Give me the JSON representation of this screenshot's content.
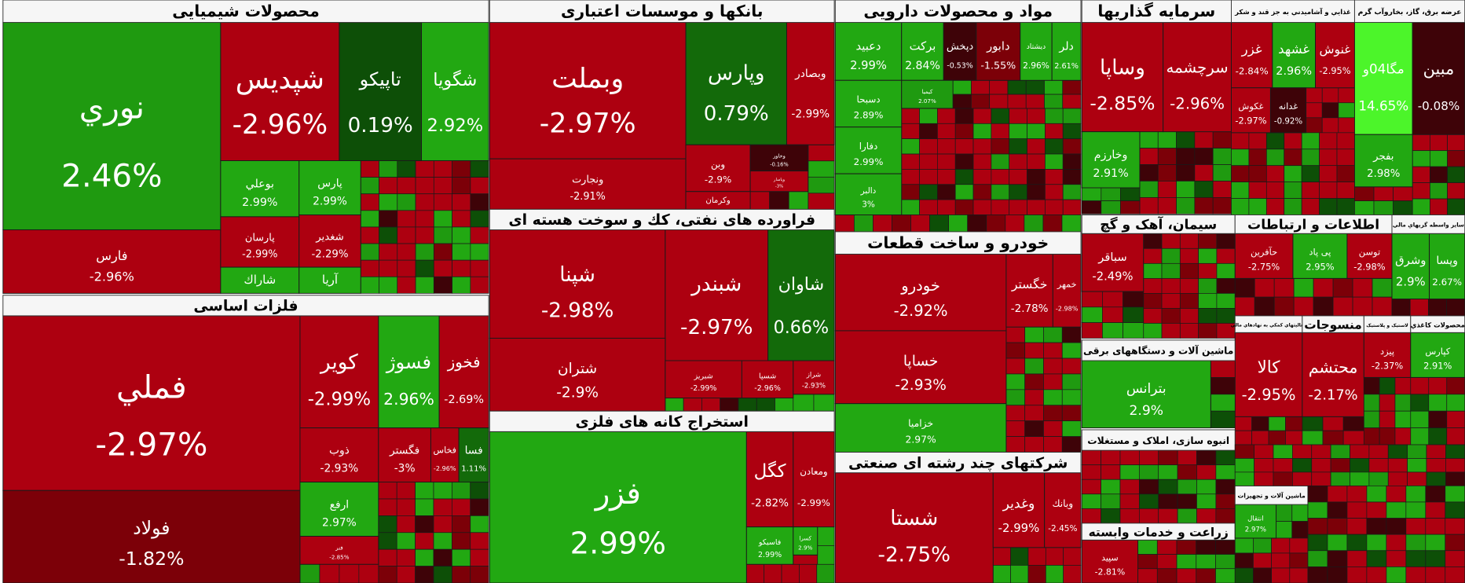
{
  "sectors": [
    {
      "title": "محصولات شیمیایی",
      "tiles": [
        {
          "name": "نوري",
          "change": "2.46%"
        },
        {
          "name": "فارس",
          "change": "-2.96%"
        },
        {
          "name": "شپديس",
          "change": "-2.96%"
        },
        {
          "name": "تاپيكو",
          "change": "0.19%"
        },
        {
          "name": "شگويا",
          "change": "2.92%"
        },
        {
          "name": "بوعلي",
          "change": "2.99%"
        },
        {
          "name": "پارس",
          "change": "2.99%"
        },
        {
          "name": "پارسان",
          "change": "-2.99%"
        },
        {
          "name": "شغدير",
          "change": "-2.29%"
        },
        {
          "name": "شاراك",
          "color": "#22a812"
        },
        {
          "name": "آريا",
          "color": "#22a812"
        }
      ]
    },
    {
      "title": "فلزات اساسی",
      "tiles": [
        {
          "name": "فملي",
          "change": "-2.97%"
        },
        {
          "name": "فولاد",
          "change": "-1.82%"
        },
        {
          "name": "كوير",
          "change": "-2.99%"
        },
        {
          "name": "فسوژ",
          "change": "2.96%"
        },
        {
          "name": "فخوز",
          "change": "-2.69%"
        },
        {
          "name": "ذوب",
          "change": "-2.93%"
        },
        {
          "name": "فگستر",
          "change": "-3%"
        },
        {
          "name": "فخاس",
          "change": "-2.96%"
        },
        {
          "name": "فسا",
          "change": "1.11%"
        },
        {
          "name": "ارفع",
          "change": "2.97%"
        },
        {
          "name": "فنر",
          "change": "-2.85%"
        }
      ]
    },
    {
      "title": "بانکها و موسسات اعتباری",
      "tiles": [
        {
          "name": "وبملت",
          "change": "-2.97%"
        },
        {
          "name": "وپارس",
          "change": "0.79%"
        },
        {
          "name": "وبصادر",
          "change": "-2.99%"
        },
        {
          "name": "ونجارت",
          "change": "-2.91%"
        },
        {
          "name": "وبن",
          "change": "-2.9%"
        },
        {
          "name": "وخاور",
          "change": "-0.16%"
        },
        {
          "name": "وپاسار",
          "change": "-3%"
        },
        {
          "name": "وکرمان",
          "color": "#ad0010"
        }
      ]
    },
    {
      "title": "فراورده های نفتی، کك و سوخت هسته ای",
      "tiles": [
        {
          "name": "شپنا",
          "change": "-2.98%"
        },
        {
          "name": "شبندر",
          "change": "-2.97%"
        },
        {
          "name": "شاوان",
          "change": "0.66%"
        },
        {
          "name": "شتران",
          "change": "-2.9%"
        },
        {
          "name": "شبريز",
          "change": "-2.99%"
        },
        {
          "name": "شسپا",
          "change": "-2.96%"
        },
        {
          "name": "شراز",
          "change": "-2.93%"
        }
      ]
    },
    {
      "title": "استخراج کانه های فلزی",
      "tiles": [
        {
          "name": "فزر",
          "change": "2.99%"
        },
        {
          "name": "كگل",
          "change": "-2.82%"
        },
        {
          "name": "ومعادن",
          "change": "-2.99%"
        },
        {
          "name": "فاسيكو",
          "change": "2.99%"
        },
        {
          "name": "كسرا",
          "change": "2.9%"
        }
      ]
    },
    {
      "title": "مواد و محصولات دارویی",
      "tiles": [
        {
          "name": "دعبيد",
          "change": "2.99%"
        },
        {
          "name": "بركت",
          "change": "2.84%"
        },
        {
          "name": "دپخش",
          "change": "-0.53%"
        },
        {
          "name": "دابور",
          "change": "-1.55%"
        },
        {
          "name": "ديشتاد",
          "change": "2.96%"
        },
        {
          "name": "دلر",
          "change": "2.61%"
        },
        {
          "name": "دسبحا",
          "change": "2.89%"
        },
        {
          "name": "دفارا",
          "change": "2.99%"
        },
        {
          "name": "دالبر",
          "change": "3%"
        },
        {
          "name": "کیمیا",
          "change": "2.07%"
        }
      ]
    },
    {
      "title": "خودرو و ساخت قطعات",
      "tiles": [
        {
          "name": "خودرو",
          "change": "-2.92%"
        },
        {
          "name": "خساپا",
          "change": "-2.93%"
        },
        {
          "name": "خزامیا",
          "change": "2.97%"
        },
        {
          "name": "خگستر",
          "change": "-2.78%"
        },
        {
          "name": "خمهر",
          "change": "-2.98%"
        }
      ]
    },
    {
      "title": "شرکتهای چند رشته ای صنعتی",
      "tiles": [
        {
          "name": "شستا",
          "change": "-2.75%"
        },
        {
          "name": "وغدير",
          "change": "-2.99%"
        },
        {
          "name": "وبانك",
          "change": "-2.45%"
        }
      ]
    },
    {
      "title": "سرمایه گذاریها",
      "tiles": [
        {
          "name": "وساپا",
          "change": "-2.85%"
        },
        {
          "name": "سرچشمه",
          "change": "-2.96%"
        },
        {
          "name": "وخارزم",
          "change": "2.91%"
        }
      ]
    },
    {
      "title": "غذايي و آشاميدني به جز قند و شكر",
      "tiles": [
        {
          "name": "غزر",
          "change": "-2.84%"
        },
        {
          "name": "غشهد",
          "change": "2.96%"
        },
        {
          "name": "غنوش",
          "change": "-2.95%"
        },
        {
          "name": "غكوش",
          "change": "-2.97%"
        },
        {
          "name": "غدانه",
          "change": "-0.92%"
        }
      ]
    },
    {
      "title": "عرضه برق، گاز، بخاروآب گرم",
      "tiles": [
        {
          "name": "مگا04و",
          "change": "14.65%"
        },
        {
          "name": "مبين",
          "change": "-0.08%"
        },
        {
          "name": "بفجر",
          "change": "2.98%"
        }
      ]
    },
    {
      "title": "سیمان، آهک و گچ",
      "tiles": [
        {
          "name": "سباقر",
          "change": "-2.49%"
        }
      ]
    },
    {
      "title": "اطلاعات و ارتباطات",
      "tiles": [
        {
          "name": "حآفرين",
          "change": "-2.75%"
        },
        {
          "name": "پی پاد",
          "change": "2.95%"
        },
        {
          "name": "توسن",
          "change": "-2.98%"
        }
      ]
    },
    {
      "title": "ساير واسطه گريهاي مالي",
      "tiles": [
        {
          "name": "وشرق",
          "change": "2.9%"
        },
        {
          "name": "وپسا",
          "change": "2.67%"
        }
      ]
    },
    {
      "title": "فعاليتهاي كمكي به نهادهاي مالي",
      "tiles": [
        {
          "name": "كالا",
          "change": "-2.95%"
        }
      ]
    },
    {
      "title": "منسوجات",
      "tiles": [
        {
          "name": "محتشم",
          "change": "-2.17%"
        }
      ]
    },
    {
      "title": "لاستیک و پلاستیک",
      "tiles": [
        {
          "name": "پیزد",
          "change": "-2.37%"
        }
      ]
    },
    {
      "title": "محصولات كاغذي",
      "tiles": [
        {
          "name": "کپارس",
          "change": "2.91%"
        }
      ]
    },
    {
      "title": "ماشین آلات و دستگاههای برقی",
      "tiles": [
        {
          "name": "بترانس",
          "change": "2.9%"
        }
      ]
    },
    {
      "title": "انبوه سازی، املاک و مستغلات",
      "tiles": []
    },
    {
      "title": "زراعت و خدمات وابسته",
      "tiles": [
        {
          "name": "سپيد",
          "change": "-2.81%"
        }
      ]
    },
    {
      "title": "ماشین آلات و تجهیزات",
      "tiles": [
        {
          "name": "انتقال",
          "change": "2.97%"
        }
      ]
    }
  ]
}
